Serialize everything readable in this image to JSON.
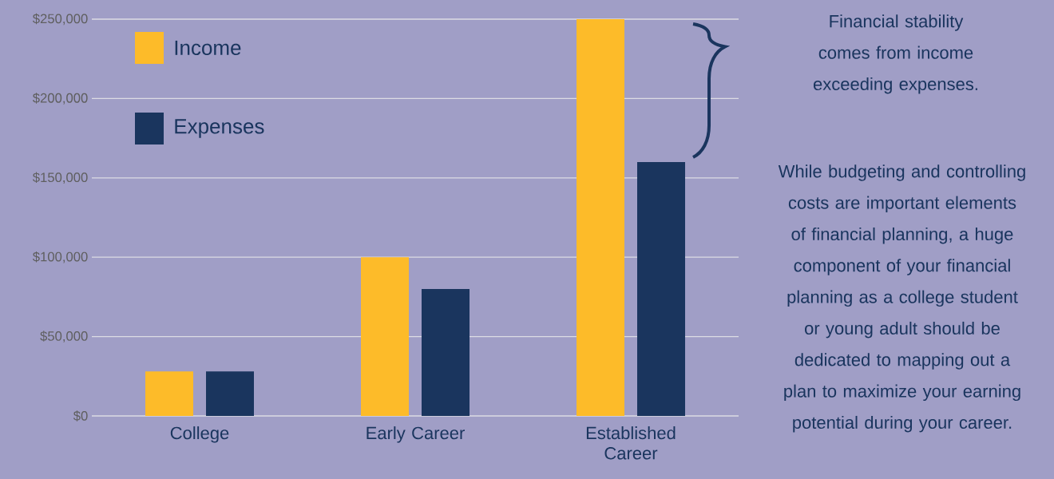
{
  "chart_data": {
    "type": "bar",
    "categories": [
      "College",
      "Early Career",
      "Established Career"
    ],
    "series": [
      {
        "name": "Income",
        "color": "#fdbb29",
        "values": [
          28000,
          100000,
          250000
        ]
      },
      {
        "name": "Expenses",
        "color": "#1a355e",
        "values": [
          28000,
          80000,
          160000
        ]
      }
    ],
    "ylim": [
      0,
      250000
    ],
    "yticks": [
      {
        "value": 0,
        "label": "$0"
      },
      {
        "value": 50000,
        "label": "$50,000"
      },
      {
        "value": 100000,
        "label": "$100,000"
      },
      {
        "value": 150000,
        "label": "$150,000"
      },
      {
        "value": 200000,
        "label": "$200,000"
      },
      {
        "value": 250000,
        "label": "$250,000"
      }
    ],
    "grid": "y",
    "legend": "top left",
    "annotations": [
      "Financial stability comes from income exceeding expenses.",
      "While budgeting and controlling costs are important elements of financial planning, a huge component of your financial planning as a college student or young adult should be dedicated to mapping out a plan to maximize your earning potential during your career."
    ]
  }
}
